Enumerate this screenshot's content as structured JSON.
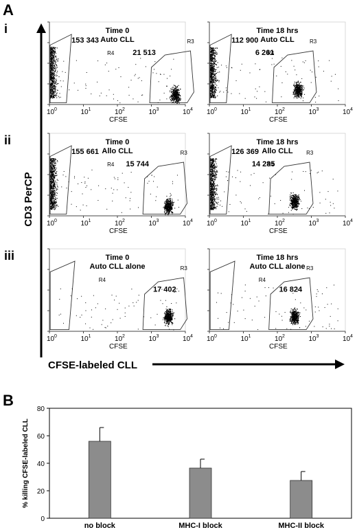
{
  "figure": {
    "panel_a_label": "A",
    "panel_b_label": "B",
    "row_labels": [
      "i",
      "ii",
      "iii"
    ],
    "y_axis_label": "CD3 PerCP",
    "x_axis_label": "CFSE-labeled CLL"
  },
  "flow_plots": [
    {
      "title1": "Time 0",
      "title2": "Auto CLL",
      "count_r4": "153 343",
      "count_r3": "21 513",
      "gate_r4": "R4",
      "gate_r3": "R3",
      "xlabel": "CFSE",
      "xticks": [
        "10",
        "10",
        "10",
        "10",
        "10"
      ],
      "xexps": [
        "0",
        "1",
        "2",
        "3",
        "4"
      ],
      "r4_populated": true,
      "r3_center": [
        3.7,
        0.2
      ]
    },
    {
      "title1": "Time 18 hrs",
      "title2": "Auto CLL",
      "count_r4": "112 900",
      "count_r3": "6 261",
      "gate_r4": "R4",
      "gate_r3": "R3",
      "xlabel": "CFSE",
      "xticks": [
        "10",
        "10",
        "10",
        "10",
        "10"
      ],
      "xexps": [
        "0",
        "1",
        "2",
        "3",
        "4"
      ],
      "r4_populated": true,
      "r3_center": [
        2.6,
        0.3
      ]
    },
    {
      "title1": "Time 0",
      "title2": "Allo CLL",
      "count_r4": "155 661",
      "count_r3": "15 744",
      "gate_r4": "R4",
      "gate_r3": "R3",
      "xlabel": "CFSE",
      "xticks": [
        "10",
        "10",
        "10",
        "10",
        "10"
      ],
      "xexps": [
        "0",
        "1",
        "2",
        "3",
        "4"
      ],
      "r4_populated": true,
      "r3_center": [
        3.5,
        0.2
      ]
    },
    {
      "title1": "Time 18 hrs",
      "title2": "Allo CLL",
      "count_r4": "126 369",
      "count_r3": "14 285",
      "gate_r4": "R4",
      "gate_r3": "R3",
      "xlabel": "CFSE",
      "xticks": [
        "10",
        "10",
        "10",
        "10",
        "10"
      ],
      "xexps": [
        "0",
        "1",
        "2",
        "3",
        "4"
      ],
      "r4_populated": true,
      "r3_center": [
        2.5,
        0.3
      ]
    },
    {
      "title1": "Time 0",
      "title2": "Auto CLL alone",
      "count_r4": "",
      "count_r3": "17 402",
      "gate_r4": "R4",
      "gate_r3": "R3",
      "xlabel": "CFSE",
      "xticks": [
        "10",
        "10",
        "10",
        "10",
        "10"
      ],
      "xexps": [
        "0",
        "1",
        "2",
        "3",
        "4"
      ],
      "r4_populated": false,
      "r3_center": [
        3.5,
        0.3
      ]
    },
    {
      "title1": "Time 18 hrs",
      "title2": "Auto CLL alone",
      "count_r4": "",
      "count_r3": "16 824",
      "gate_r4": "R4",
      "gate_r3": "R3",
      "xlabel": "CFSE",
      "xticks": [
        "10",
        "10",
        "10",
        "10",
        "10"
      ],
      "xexps": [
        "0",
        "1",
        "2",
        "3",
        "4"
      ],
      "r4_populated": false,
      "r3_center": [
        2.5,
        0.3
      ]
    }
  ],
  "chart_data": {
    "type": "bar",
    "categories": [
      "no block",
      "MHC-I block",
      "MHC-II block"
    ],
    "values": [
      56,
      36.5,
      27.5
    ],
    "errors": [
      10,
      6.5,
      6.5
    ],
    "title": "",
    "xlabel": "",
    "ylabel": "% killing CFSE-labeled CLL",
    "ylim": [
      0,
      80
    ],
    "yticks": [
      0,
      20,
      40,
      60,
      80
    ],
    "bar_color": "#8c8c8c",
    "grid": false
  }
}
